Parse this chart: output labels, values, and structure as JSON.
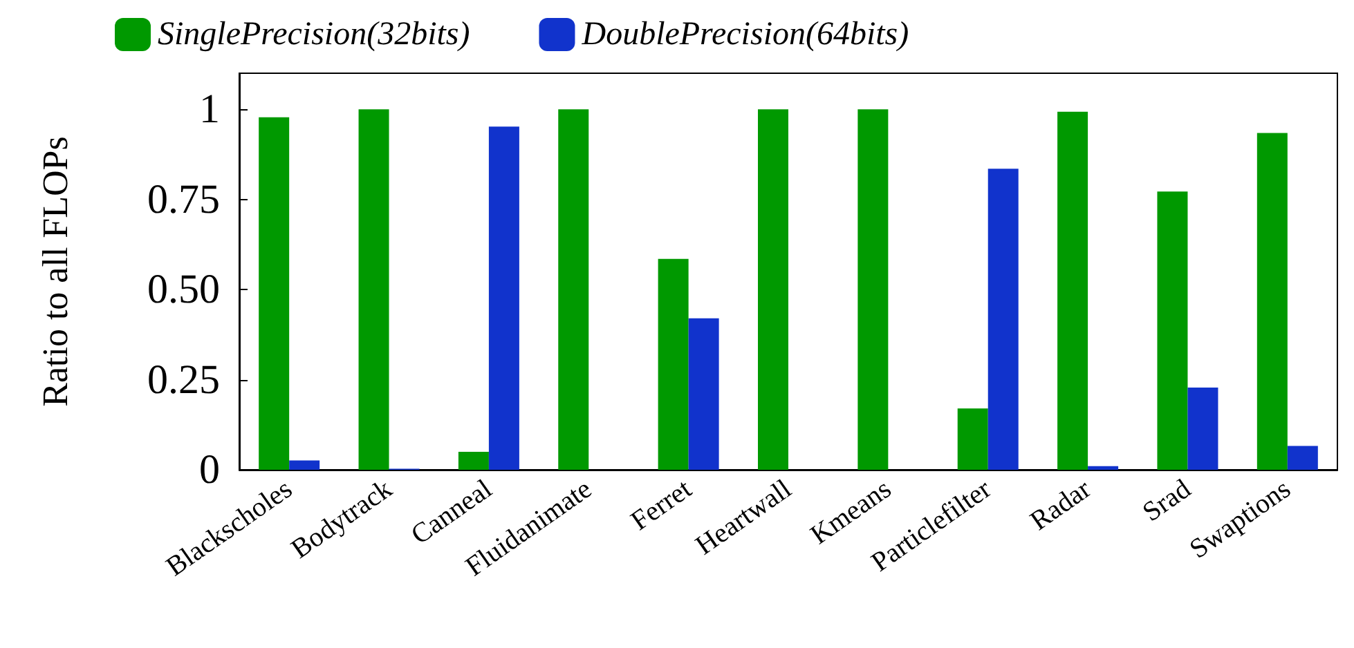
{
  "chart_data": {
    "type": "bar",
    "ylabel": "Ratio to all FLOPs",
    "categories": [
      "Blackscholes",
      "Bodytrack",
      "Canneal",
      "Fluidanimate",
      "Ferret",
      "Heartwall",
      "Kmeans",
      "Particlefilter",
      "Radar",
      "Srad",
      "Swaptions"
    ],
    "series": [
      {
        "name": "SinglePrecision(32bits)",
        "color": "#009900",
        "values": [
          0.978,
          1,
          0.05,
          1,
          0.585,
          1,
          1,
          0.17,
          0.993,
          0.772,
          0.934
        ]
      },
      {
        "name": "DoublePrecision(64bits)",
        "color": "#1133cc",
        "values": [
          0.026,
          0.003,
          0.952,
          0,
          0.42,
          0,
          0,
          0.835,
          0.01,
          0.228,
          0.066
        ]
      }
    ],
    "ylim": [
      0,
      1.1
    ],
    "yticks": [
      0,
      0.25,
      {
        "value": 0.5,
        "label": "0.50"
      },
      0.75,
      1
    ],
    "grid": false,
    "legend": "top"
  }
}
